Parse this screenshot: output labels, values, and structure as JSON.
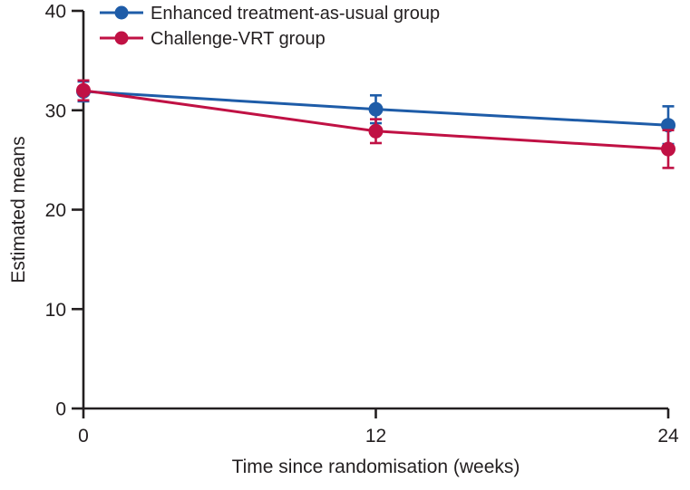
{
  "chart_data": {
    "type": "line",
    "title": "",
    "xlabel": "Time since randomisation (weeks)",
    "ylabel": "Estimated means",
    "x": [
      0,
      12,
      24
    ],
    "xticks": [
      0,
      12,
      24
    ],
    "yticks": [
      0,
      10,
      20,
      30,
      40
    ],
    "xlim": [
      0,
      24
    ],
    "ylim": [
      0,
      40
    ],
    "grid": false,
    "legend_position": "top-left-inside",
    "marker": "circle",
    "error_bars": true,
    "axis_color": "#231F20",
    "series": [
      {
        "name": "Enhanced treatment-as-usual group",
        "color": "#1E5CA8",
        "values": [
          31.9,
          30.1,
          28.5
        ],
        "errors": [
          1.0,
          1.4,
          1.9
        ]
      },
      {
        "name": "Challenge-VRT group",
        "color": "#C01144",
        "values": [
          32.0,
          27.9,
          26.1
        ],
        "errors": [
          1.0,
          1.2,
          1.9
        ]
      }
    ]
  }
}
